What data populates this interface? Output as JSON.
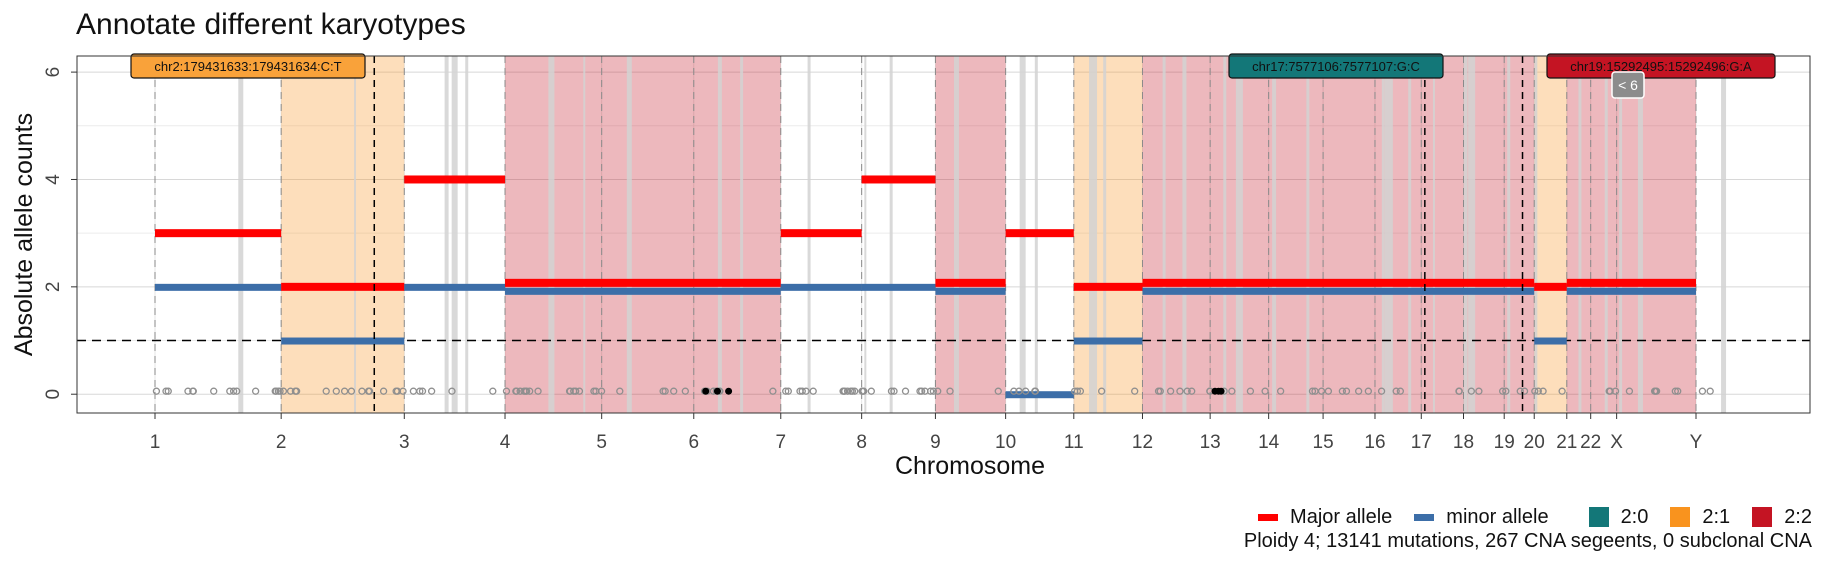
{
  "chart_data": {
    "type": "scatter",
    "title": "Annotate different karyotypes",
    "xlabel": "Chromosome",
    "ylabel": "Absolute allele counts",
    "ylim": [
      -0.35,
      6.3
    ],
    "yticks": [
      "0",
      "2",
      "4",
      "6"
    ],
    "chromosomes": [
      "1",
      "2",
      "3",
      "4",
      "5",
      "6",
      "7",
      "8",
      "9",
      "10",
      "11",
      "12",
      "13",
      "14",
      "15",
      "16",
      "17",
      "18",
      "19",
      "20",
      "21",
      "22",
      "X",
      "Y"
    ],
    "boundaries": [
      0,
      248,
      490,
      688,
      878,
      1059,
      1230,
      1389,
      1534,
      1672,
      1806,
      1941,
      2074,
      2189,
      2296,
      2398,
      2489,
      2572,
      2652,
      2711,
      2775,
      2822,
      2873,
      3029,
      3086
    ],
    "reference_line": 1,
    "segments": [
      {
        "from": 0,
        "to": 248,
        "major": 3,
        "minor": 2,
        "karyotype": "3:2"
      },
      {
        "from": 248,
        "to": 490,
        "major": 2,
        "minor": 1,
        "karyotype": "2:1"
      },
      {
        "from": 490,
        "to": 688,
        "major": 4,
        "minor": 2,
        "karyotype": "4:2"
      },
      {
        "from": 688,
        "to": 1230,
        "major": 2,
        "minor": 2,
        "karyotype": "2:2"
      },
      {
        "from": 1230,
        "to": 1389,
        "major": 3,
        "minor": 2,
        "karyotype": "3:2"
      },
      {
        "from": 1389,
        "to": 1534,
        "major": 4,
        "minor": 2,
        "karyotype": "4:2"
      },
      {
        "from": 1534,
        "to": 1672,
        "major": 2,
        "minor": 2,
        "karyotype": "2:2"
      },
      {
        "from": 1672,
        "to": 1806,
        "major": 3,
        "minor": 0,
        "karyotype": "3:0"
      },
      {
        "from": 1806,
        "to": 1941,
        "major": 2,
        "minor": 1,
        "karyotype": "2:1"
      },
      {
        "from": 1941,
        "to": 2711,
        "major": 2,
        "minor": 2,
        "karyotype": "2:2"
      },
      {
        "from": 2711,
        "to": 2775,
        "major": 2,
        "minor": 1,
        "karyotype": "2:1"
      },
      {
        "from": 2775,
        "to": 3029,
        "major": 2,
        "minor": 2,
        "karyotype": "2:2"
      }
    ],
    "drivers": [
      {
        "label": "chr2:179431633:179431634:C:T",
        "pos": 431,
        "color": "#F9A23A"
      },
      {
        "label": "chr17:7577106:7577107:G:C",
        "pos": 2496,
        "color": "#137778"
      },
      {
        "label": "chr19:15292495:15292496:G:A",
        "pos": 2688,
        "color": "#C41423"
      }
    ],
    "annotation_badge": "< 6",
    "legend": {
      "lines": [
        {
          "label": "Major allele",
          "color": "#FF0000"
        },
        {
          "label": "minor allele",
          "color": "#3C6EA8"
        }
      ],
      "karyotypes": [
        {
          "label": "2:0",
          "color": "#137778"
        },
        {
          "label": "2:1",
          "color": "#F9931E"
        },
        {
          "label": "2:2",
          "color": "#C41423"
        }
      ]
    },
    "subtitle": "Ploidy 4; 13141 mutations, 267 CNA segeents, 0 subclonal CNA"
  }
}
